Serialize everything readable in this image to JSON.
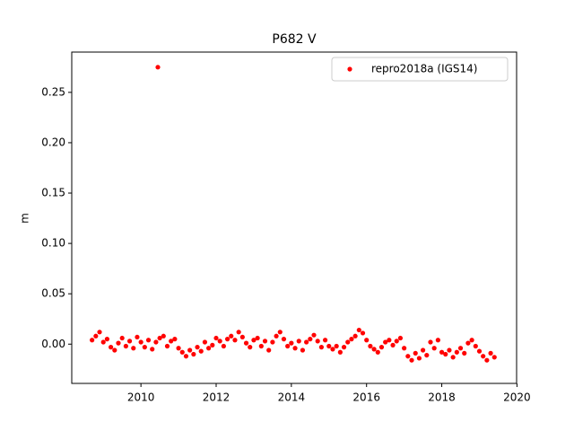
{
  "chart_data": {
    "type": "scatter",
    "title": "P682 V",
    "y_label": "m",
    "series": [
      {
        "name": "repro2018a (IGS14)",
        "color": "#ff0000",
        "x": [
          2008.7,
          2008.8,
          2008.9,
          2009.0,
          2009.1,
          2009.2,
          2009.3,
          2009.4,
          2009.5,
          2009.6,
          2009.7,
          2009.8,
          2009.9,
          2010.0,
          2010.1,
          2010.2,
          2010.3,
          2010.4,
          2010.5,
          2010.6,
          2010.7,
          2010.8,
          2010.9,
          2011.0,
          2011.1,
          2011.2,
          2011.3,
          2011.4,
          2011.5,
          2011.6,
          2011.7,
          2011.8,
          2011.9,
          2012.0,
          2012.1,
          2012.2,
          2012.3,
          2012.4,
          2012.5,
          2012.6,
          2012.7,
          2012.8,
          2012.9,
          2013.0,
          2013.1,
          2013.2,
          2013.3,
          2013.4,
          2013.5,
          2013.6,
          2013.7,
          2013.8,
          2013.9,
          2014.0,
          2014.1,
          2014.2,
          2014.3,
          2014.4,
          2014.5,
          2014.6,
          2014.7,
          2014.8,
          2014.9,
          2015.0,
          2015.1,
          2015.2,
          2015.3,
          2015.4,
          2015.5,
          2015.6,
          2015.7,
          2015.8,
          2015.9,
          2016.0,
          2016.1,
          2016.2,
          2016.3,
          2016.4,
          2016.5,
          2016.6,
          2016.7,
          2016.8,
          2016.9,
          2017.0,
          2017.1,
          2017.2,
          2017.3,
          2017.4,
          2017.5,
          2017.6,
          2017.7,
          2017.8,
          2017.9,
          2018.0,
          2018.1,
          2018.2,
          2018.3,
          2018.4,
          2018.5,
          2018.6,
          2018.7,
          2018.8,
          2018.9,
          2019.0,
          2019.1,
          2019.2,
          2019.3,
          2019.4,
          2010.45
        ],
        "values": [
          0.004,
          0.008,
          0.012,
          0.002,
          0.005,
          -0.003,
          -0.006,
          0.001,
          0.006,
          -0.002,
          0.003,
          -0.004,
          0.007,
          0.002,
          -0.003,
          0.004,
          -0.005,
          0.002,
          0.006,
          0.008,
          -0.002,
          0.003,
          0.005,
          -0.004,
          -0.008,
          -0.012,
          -0.006,
          -0.01,
          -0.003,
          -0.007,
          0.002,
          -0.004,
          -0.001,
          0.006,
          0.003,
          -0.002,
          0.005,
          0.008,
          0.004,
          0.012,
          0.007,
          0.001,
          -0.003,
          0.004,
          0.006,
          -0.002,
          0.003,
          -0.006,
          0.002,
          0.008,
          0.012,
          0.005,
          -0.002,
          0.001,
          -0.004,
          0.003,
          -0.006,
          0.002,
          0.005,
          0.009,
          0.003,
          -0.003,
          0.004,
          -0.002,
          -0.005,
          -0.002,
          -0.008,
          -0.003,
          0.002,
          0.005,
          0.008,
          0.014,
          0.011,
          0.004,
          -0.002,
          -0.005,
          -0.008,
          -0.003,
          0.002,
          0.004,
          -0.001,
          0.003,
          0.006,
          -0.004,
          -0.012,
          -0.016,
          -0.009,
          -0.014,
          -0.006,
          -0.011,
          0.002,
          -0.004,
          0.004,
          -0.008,
          -0.01,
          -0.006,
          -0.013,
          -0.008,
          -0.004,
          -0.009,
          0.001,
          0.004,
          -0.002,
          -0.007,
          -0.012,
          -0.016,
          -0.009,
          -0.013,
          0.275
        ]
      }
    ],
    "xlim": [
      2008.16,
      2019.99
    ],
    "ylim": [
      -0.039,
      0.29
    ],
    "xticks": [
      2010,
      2012,
      2014,
      2016,
      2018,
      2020
    ],
    "yticks": [
      {
        "value": 0,
        "label": "0.00"
      },
      {
        "value": 0.05,
        "label": "0.05"
      },
      {
        "value": 0.1,
        "label": "0.10"
      },
      {
        "value": 0.15,
        "label": "0.15"
      },
      {
        "value": 0.2,
        "label": "0.20"
      },
      {
        "value": 0.25,
        "label": "0.25"
      }
    ],
    "legend": "upper right",
    "grid": false
  }
}
